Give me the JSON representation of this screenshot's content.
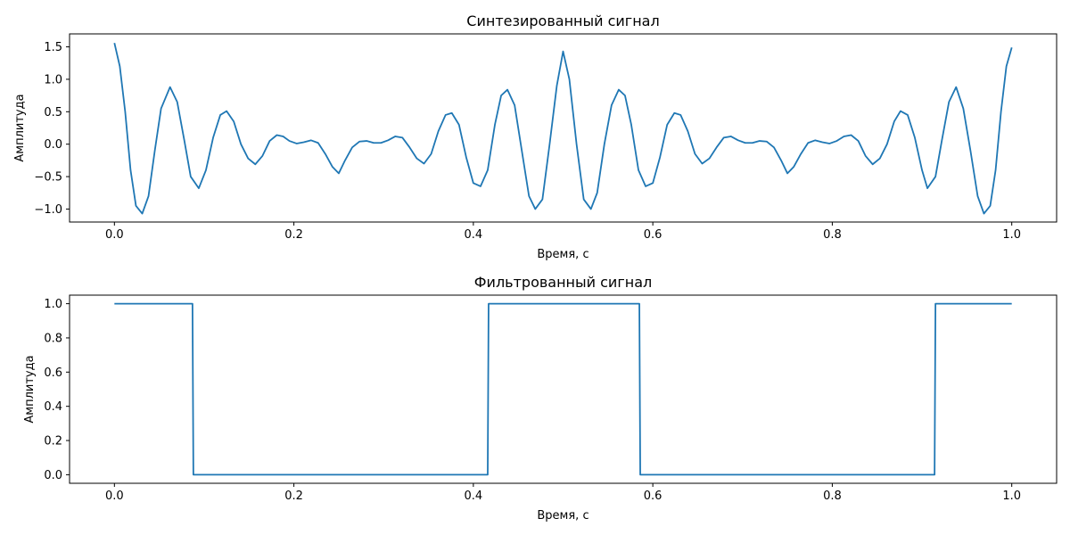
{
  "chart_data": [
    {
      "type": "line",
      "title": "Синтезированный сигнал",
      "xlabel": "Время, с",
      "ylabel": "Амплитуда",
      "xlim": [
        -0.05,
        1.05
      ],
      "ylim": [
        -1.2,
        1.7
      ],
      "xticks": [
        0.0,
        0.2,
        0.4,
        0.6,
        0.8,
        1.0
      ],
      "xtick_labels": [
        "0.0",
        "0.2",
        "0.4",
        "0.6",
        "0.8",
        "1.0"
      ],
      "yticks": [
        -1.0,
        -0.5,
        0.0,
        0.5,
        1.0,
        1.5
      ],
      "ytick_labels": [
        "−1.0",
        "−0.5",
        "0.0",
        "0.5",
        "1.0",
        "1.5"
      ],
      "grid": false,
      "series": [
        {
          "color": "#1f77b4",
          "x": [
            0.0,
            0.006,
            0.012,
            0.018,
            0.024,
            0.031,
            0.038,
            0.045,
            0.052,
            0.062,
            0.07,
            0.078,
            0.085,
            0.094,
            0.102,
            0.11,
            0.118,
            0.125,
            0.133,
            0.141,
            0.149,
            0.157,
            0.165,
            0.173,
            0.181,
            0.188,
            0.195,
            0.203,
            0.211,
            0.219,
            0.227,
            0.235,
            0.243,
            0.25,
            0.257,
            0.265,
            0.273,
            0.281,
            0.289,
            0.297,
            0.305,
            0.313,
            0.321,
            0.329,
            0.337,
            0.345,
            0.353,
            0.361,
            0.369,
            0.376,
            0.384,
            0.392,
            0.4,
            0.408,
            0.416,
            0.424,
            0.431,
            0.438,
            0.446,
            0.454,
            0.462,
            0.469,
            0.477,
            0.485,
            0.493,
            0.5,
            0.507,
            0.515,
            0.523,
            0.531,
            0.538,
            0.546,
            0.554,
            0.562,
            0.569,
            0.576,
            0.584,
            0.592,
            0.6,
            0.608,
            0.616,
            0.624,
            0.631,
            0.639,
            0.647,
            0.655,
            0.663,
            0.671,
            0.679,
            0.687,
            0.695,
            0.703,
            0.711,
            0.719,
            0.727,
            0.735,
            0.743,
            0.75,
            0.757,
            0.765,
            0.773,
            0.781,
            0.789,
            0.797,
            0.805,
            0.813,
            0.821,
            0.829,
            0.837,
            0.845,
            0.853,
            0.861,
            0.869,
            0.876,
            0.884,
            0.892,
            0.9,
            0.906,
            0.915,
            0.922,
            0.93,
            0.938,
            0.946,
            0.954,
            0.962,
            0.969,
            0.976,
            0.982,
            0.988,
            0.994,
            1.0
          ],
          "y": [
            1.56,
            1.2,
            0.5,
            -0.4,
            -0.95,
            -1.07,
            -0.8,
            -0.1,
            0.55,
            0.88,
            0.65,
            0.05,
            -0.5,
            -0.68,
            -0.4,
            0.1,
            0.45,
            0.51,
            0.35,
            0.0,
            -0.22,
            -0.31,
            -0.18,
            0.05,
            0.14,
            0.12,
            0.05,
            0.01,
            0.03,
            0.06,
            0.02,
            -0.15,
            -0.35,
            -0.45,
            -0.25,
            -0.05,
            0.04,
            0.05,
            0.02,
            0.02,
            0.06,
            0.12,
            0.1,
            -0.05,
            -0.22,
            -0.3,
            -0.15,
            0.2,
            0.45,
            0.48,
            0.3,
            -0.2,
            -0.6,
            -0.65,
            -0.4,
            0.3,
            0.75,
            0.84,
            0.6,
            -0.1,
            -0.8,
            -1.0,
            -0.85,
            0.0,
            0.9,
            1.43,
            1.0,
            0.0,
            -0.85,
            -1.0,
            -0.75,
            0.0,
            0.6,
            0.84,
            0.75,
            0.3,
            -0.4,
            -0.65,
            -0.6,
            -0.2,
            0.3,
            0.48,
            0.45,
            0.2,
            -0.15,
            -0.3,
            -0.22,
            -0.05,
            0.1,
            0.12,
            0.06,
            0.02,
            0.02,
            0.05,
            0.04,
            -0.05,
            -0.25,
            -0.45,
            -0.35,
            -0.15,
            0.02,
            0.06,
            0.03,
            0.01,
            0.05,
            0.12,
            0.14,
            0.05,
            -0.18,
            -0.31,
            -0.22,
            0.0,
            0.35,
            0.51,
            0.45,
            0.1,
            -0.4,
            -0.68,
            -0.5,
            0.05,
            0.65,
            0.88,
            0.55,
            -0.1,
            -0.8,
            -1.07,
            -0.95,
            -0.4,
            0.5,
            1.2,
            1.49
          ]
        }
      ]
    },
    {
      "type": "line",
      "title": "Фильтрованный сигнал",
      "xlabel": "Время, с",
      "ylabel": "Амплитуда",
      "xlim": [
        -0.05,
        1.05
      ],
      "ylim": [
        -0.05,
        1.05
      ],
      "xticks": [
        0.0,
        0.2,
        0.4,
        0.6,
        0.8,
        1.0
      ],
      "xtick_labels": [
        "0.0",
        "0.2",
        "0.4",
        "0.6",
        "0.8",
        "1.0"
      ],
      "yticks": [
        0.0,
        0.2,
        0.4,
        0.6,
        0.8,
        1.0
      ],
      "ytick_labels": [
        "0.0",
        "0.2",
        "0.4",
        "0.6",
        "0.8",
        "1.0"
      ],
      "grid": false,
      "series": [
        {
          "color": "#1f77b4",
          "x": [
            0.0,
            0.087,
            0.088,
            0.416,
            0.417,
            0.585,
            0.586,
            0.914,
            0.915,
            1.0
          ],
          "y": [
            1.0,
            1.0,
            0.0,
            0.0,
            1.0,
            1.0,
            0.0,
            0.0,
            1.0,
            1.0
          ]
        }
      ]
    }
  ]
}
